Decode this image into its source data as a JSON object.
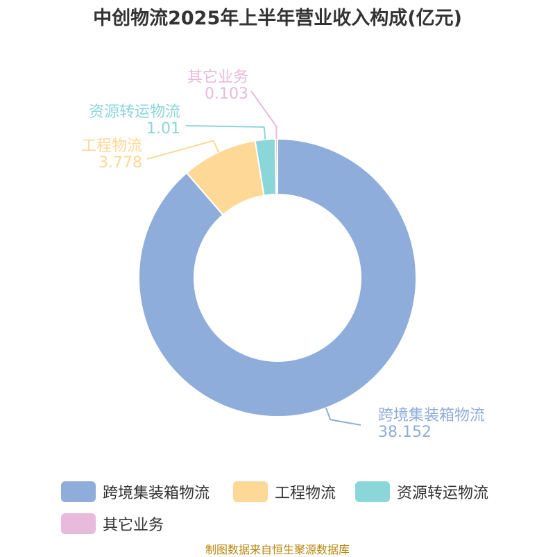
{
  "chart_data": {
    "type": "pie",
    "title": "中创物流2025年上半年营业收入构成(亿元)",
    "slices": [
      {
        "label": "跨境集装箱物流",
        "value": 38.152,
        "value_text": "38.152",
        "color": "#8EADDA"
      },
      {
        "label": "工程物流",
        "value": 3.778,
        "value_text": "3.778",
        "color": "#FDD897"
      },
      {
        "label": "资源转运物流",
        "value": 1.01,
        "value_text": "1.01",
        "color": "#8BD6D8"
      },
      {
        "label": "其它业务",
        "value": 0.103,
        "value_text": "0.103",
        "color": "#E8BADB"
      }
    ],
    "legend_position": "bottom"
  },
  "source": "制图数据来自恒生聚源数据库"
}
